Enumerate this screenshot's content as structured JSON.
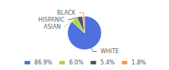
{
  "chart_data": {
    "type": "pie",
    "categories": [
      "WHITE",
      "ASIAN",
      "HISPANIC",
      "BLACK"
    ],
    "values": [
      86.9,
      6.0,
      5.4,
      1.8
    ],
    "value_labels": [
      "86.9%",
      "6.0%",
      "5.4%",
      "1.8%"
    ],
    "legend": "bottom"
  }
}
